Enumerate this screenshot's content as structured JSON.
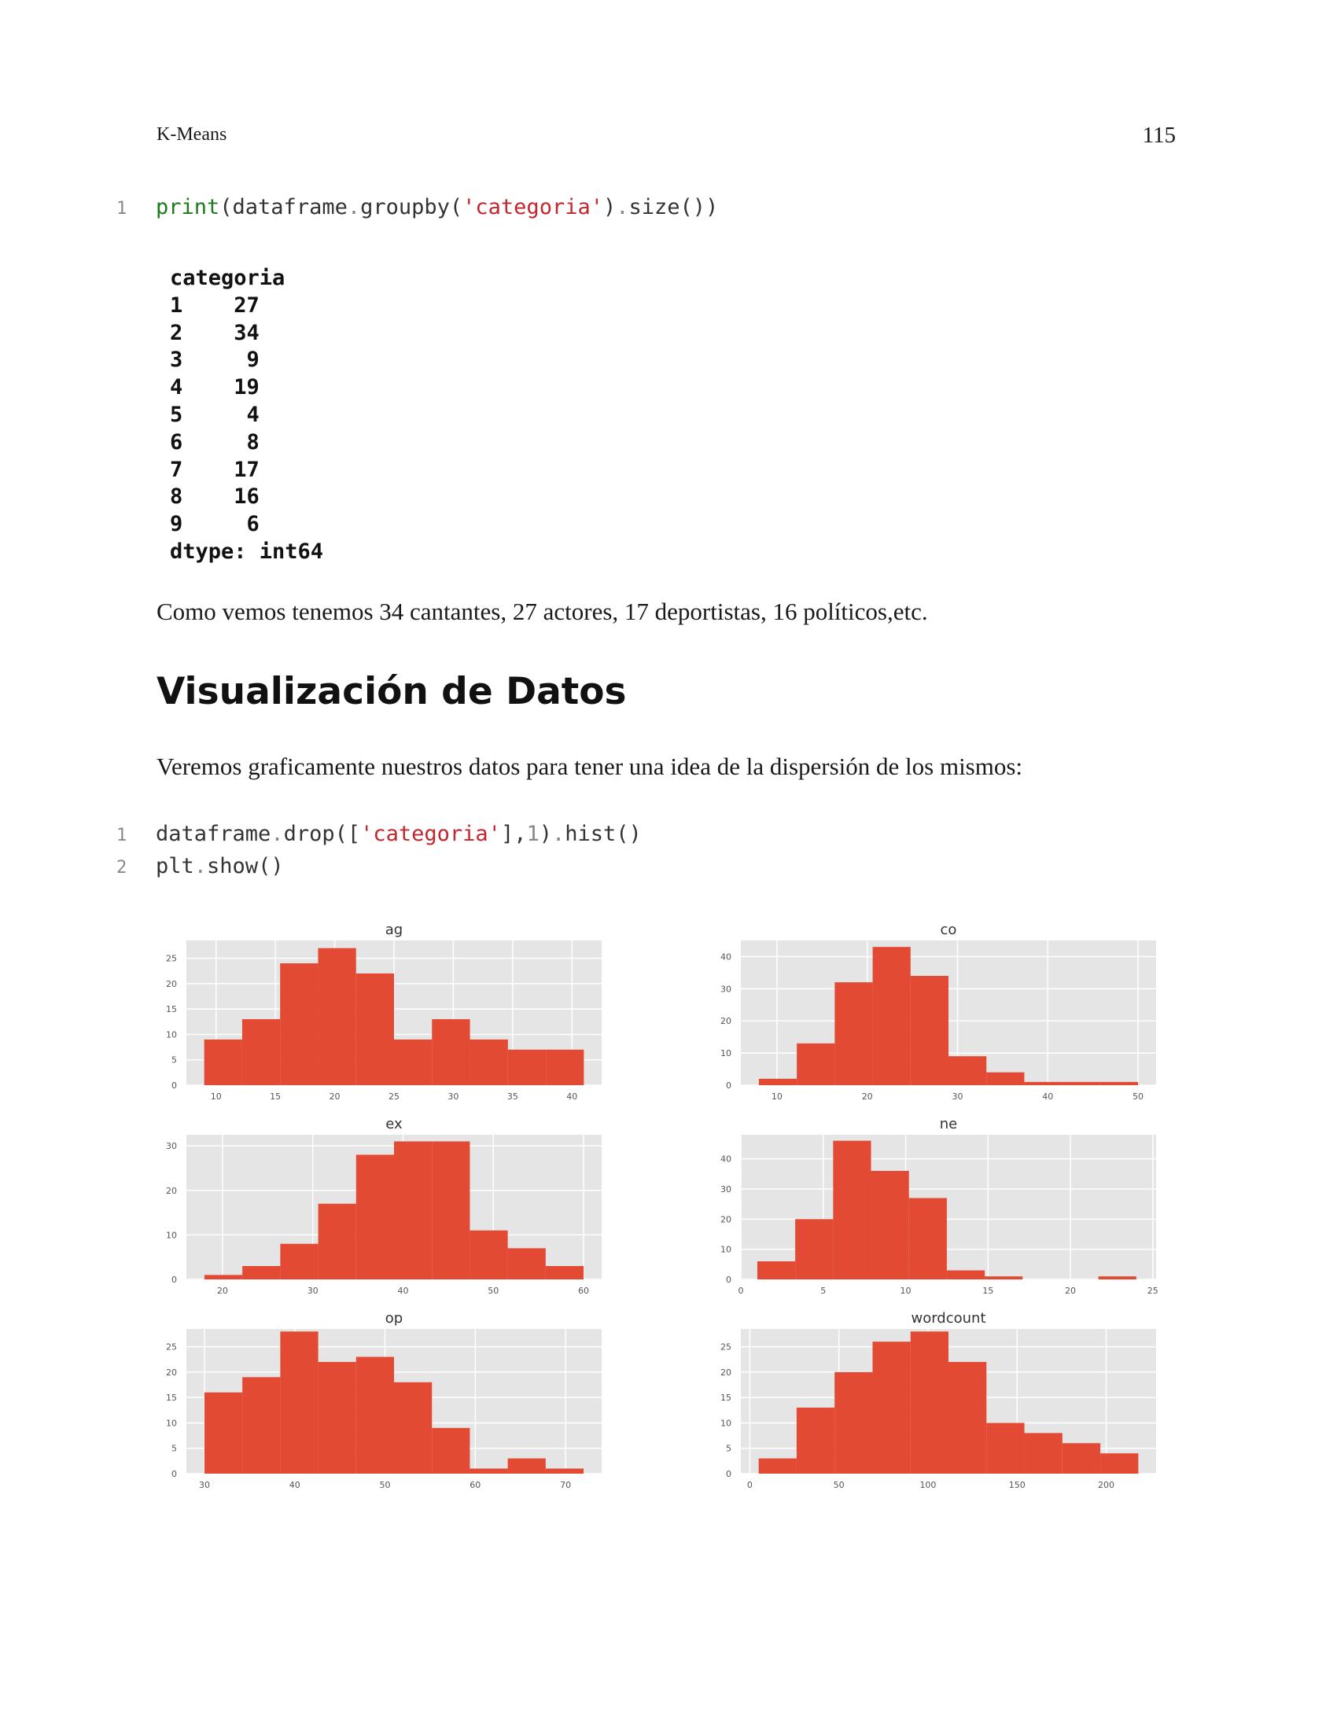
{
  "header": {
    "running_head": "K-Means",
    "page_number": "115"
  },
  "code_block_1": [
    {
      "line_no": "1",
      "parts": [
        {
          "t": "print",
          "c": "kw"
        },
        {
          "t": "(dataframe",
          "c": ""
        },
        {
          "t": ".",
          "c": "punc"
        },
        {
          "t": "groupby(",
          "c": ""
        },
        {
          "t": "'categoria'",
          "c": "str"
        },
        {
          "t": ")",
          "c": ""
        },
        {
          "t": ".",
          "c": "punc"
        },
        {
          "t": "size())",
          "c": ""
        }
      ]
    }
  ],
  "output_text": "categoria\n1    27\n2    34\n3     9\n4    19\n5     4\n6     8\n7    17\n8    16\n9     6\ndtype: int64",
  "paragraph_1": "Como vemos tenemos 34 cantantes, 27 actores, 17 deportistas, 16 políticos,etc.",
  "section_title": "Visualización de Datos",
  "paragraph_2": "Veremos graficamente nuestros datos para tener una idea de la dispersión de los mismos:",
  "code_block_2": [
    {
      "line_no": "1",
      "parts": [
        {
          "t": "dataframe",
          "c": ""
        },
        {
          "t": ".",
          "c": "punc"
        },
        {
          "t": "drop([",
          "c": ""
        },
        {
          "t": "'categoria'",
          "c": "str"
        },
        {
          "t": "],",
          "c": ""
        },
        {
          "t": "1",
          "c": "num"
        },
        {
          "t": ")",
          "c": ""
        },
        {
          "t": ".",
          "c": "punc"
        },
        {
          "t": "hist()",
          "c": ""
        }
      ]
    },
    {
      "line_no": "2",
      "parts": [
        {
          "t": "plt",
          "c": ""
        },
        {
          "t": ".",
          "c": "punc"
        },
        {
          "t": "show()",
          "c": ""
        }
      ]
    }
  ],
  "colors": {
    "bar": "#e24a33",
    "plot_bg": "#e5e5e5",
    "grid": "#ffffff",
    "tick": "#555555"
  },
  "chart_data": [
    {
      "type": "bar",
      "title": "ag",
      "bin_edges": [
        9,
        12.2,
        15.4,
        18.6,
        21.8,
        25,
        28.2,
        31.4,
        34.6,
        37.8,
        41
      ],
      "values": [
        9,
        13,
        24,
        27,
        22,
        9,
        13,
        9,
        7,
        7
      ],
      "xlim": [
        7.5,
        42.5
      ],
      "ylim": [
        0,
        28.5
      ],
      "xticks": [
        10,
        15,
        20,
        25,
        30,
        35,
        40
      ],
      "yticks": [
        0,
        5,
        10,
        15,
        20,
        25
      ],
      "grid": true
    },
    {
      "type": "bar",
      "title": "co",
      "bin_edges": [
        8,
        12.2,
        16.4,
        20.6,
        24.8,
        29,
        33.2,
        37.4,
        41.6,
        45.8,
        50
      ],
      "values": [
        2,
        13,
        32,
        43,
        34,
        9,
        4,
        1,
        1,
        1
      ],
      "xlim": [
        6,
        52
      ],
      "ylim": [
        0,
        45
      ],
      "xticks": [
        10,
        20,
        30,
        40,
        50
      ],
      "yticks": [
        0,
        10,
        20,
        30,
        40
      ],
      "grid": true
    },
    {
      "type": "bar",
      "title": "ex",
      "bin_edges": [
        18,
        22.2,
        26.4,
        30.6,
        34.8,
        39,
        43.2,
        47.4,
        51.6,
        55.8,
        60
      ],
      "values": [
        1,
        3,
        8,
        17,
        28,
        31,
        31,
        11,
        7,
        3
      ],
      "xlim": [
        16,
        62
      ],
      "ylim": [
        0,
        32.5
      ],
      "xticks": [
        20,
        30,
        40,
        50,
        60
      ],
      "yticks": [
        0,
        10,
        20,
        30
      ],
      "grid": true
    },
    {
      "type": "bar",
      "title": "ne",
      "bin_edges": [
        1,
        3.3,
        5.6,
        7.9,
        10.2,
        12.5,
        14.8,
        17.1,
        19.4,
        21.7,
        24
      ],
      "values": [
        6,
        20,
        46,
        36,
        27,
        3,
        1,
        0,
        0,
        1
      ],
      "xlim": [
        0,
        25.2
      ],
      "ylim": [
        0,
        48
      ],
      "xticks": [
        0,
        5,
        10,
        15,
        20,
        25
      ],
      "yticks": [
        0,
        10,
        20,
        30,
        40
      ],
      "grid": true
    },
    {
      "type": "bar",
      "title": "op",
      "bin_edges": [
        30,
        34.2,
        38.4,
        42.6,
        46.8,
        51,
        55.2,
        59.4,
        63.6,
        67.8,
        72
      ],
      "values": [
        16,
        19,
        28,
        22,
        23,
        18,
        9,
        1,
        3,
        1
      ],
      "xlim": [
        28,
        74
      ],
      "ylim": [
        0,
        28.5
      ],
      "xticks": [
        30,
        40,
        50,
        60,
        70
      ],
      "yticks": [
        0,
        5,
        10,
        15,
        20,
        25
      ],
      "grid": true
    },
    {
      "type": "bar",
      "title": "wordcount",
      "bin_edges": [
        5,
        26.3,
        47.6,
        68.9,
        90.2,
        111.5,
        132.8,
        154.1,
        175.4,
        196.7,
        218
      ],
      "values": [
        3,
        13,
        20,
        26,
        28,
        22,
        10,
        8,
        6,
        4
      ],
      "xlim": [
        -5,
        228
      ],
      "ylim": [
        0,
        28.5
      ],
      "xticks": [
        0,
        50,
        100,
        150,
        200
      ],
      "yticks": [
        0,
        5,
        10,
        15,
        20,
        25
      ],
      "grid": true
    }
  ]
}
